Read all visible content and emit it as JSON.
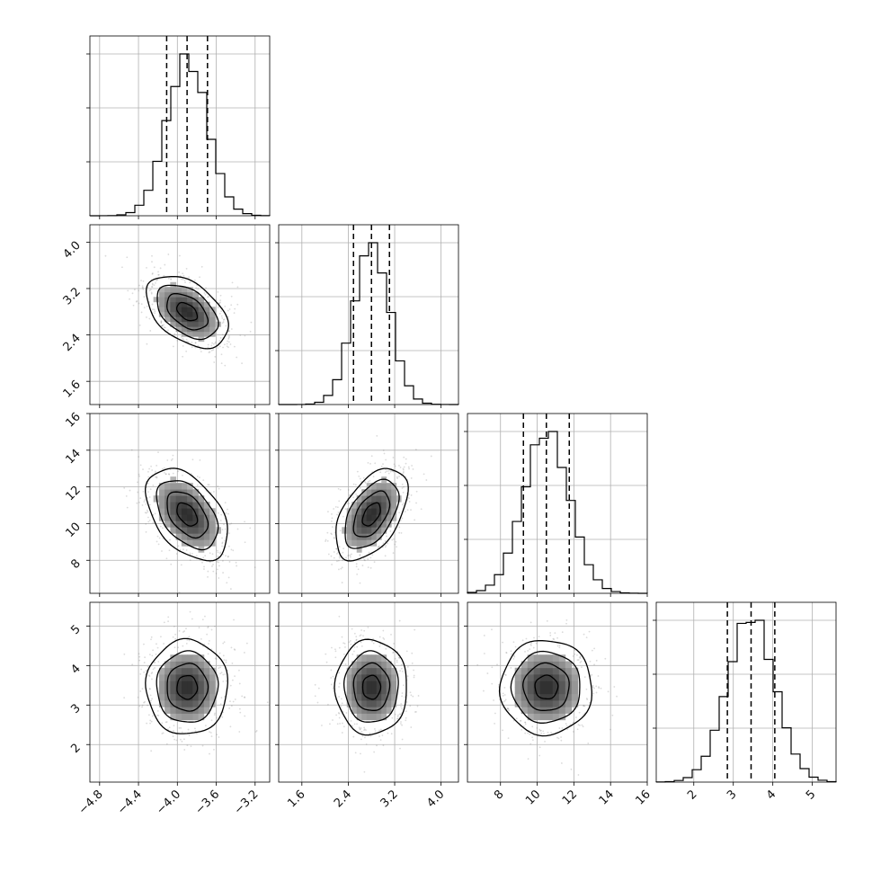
{
  "chart_data": {
    "type": "corner",
    "n_params": 4,
    "grid": true,
    "colors": {
      "line": "#000000",
      "grid": "#b0b0b0",
      "points": "#7f7f7f"
    },
    "parameters": [
      {
        "index": 0,
        "mean": -3.9,
        "sd": 0.21,
        "range": [
          -4.9,
          -3.05
        ],
        "quantiles": [
          -4.11,
          -3.9,
          -3.69
        ],
        "ticks": [
          -4.8,
          -4.4,
          -4.0,
          -3.6,
          -3.2
        ],
        "tick_labels": [
          "−4.8",
          "−4.4",
          "−4.0",
          "−3.6",
          "−3.2"
        ]
      },
      {
        "index": 1,
        "mean": 2.8,
        "sd": 0.31,
        "range": [
          1.2,
          4.3
        ],
        "quantiles": [
          2.49,
          2.8,
          3.11
        ],
        "ticks": [
          1.6,
          2.4,
          3.2,
          4.0
        ],
        "tick_labels": [
          "1.6",
          "2.4",
          "3.2",
          "4.0"
        ]
      },
      {
        "index": 2,
        "mean": 10.5,
        "sd": 1.25,
        "range": [
          6.2,
          16.0
        ],
        "quantiles": [
          9.25,
          10.5,
          11.75
        ],
        "ticks": [
          8,
          10,
          12,
          14,
          16
        ],
        "tick_labels": [
          "8",
          "10",
          "12",
          "14",
          "16"
        ]
      },
      {
        "index": 3,
        "mean": 3.45,
        "sd": 0.6,
        "range": [
          1.05,
          5.6
        ],
        "quantiles": [
          2.85,
          3.45,
          4.05
        ],
        "ticks": [
          2,
          3,
          4,
          5
        ],
        "tick_labels": [
          "2",
          "3",
          "4",
          "5"
        ]
      }
    ],
    "correlations": [
      {
        "pair": [
          0,
          1
        ],
        "rho": -0.45
      },
      {
        "pair": [
          0,
          2
        ],
        "rho": -0.45
      },
      {
        "pair": [
          1,
          2
        ],
        "rho": 0.5
      },
      {
        "pair": [
          0,
          3
        ],
        "rho": 0.0
      },
      {
        "pair": [
          1,
          3
        ],
        "rho": 0.0
      },
      {
        "pair": [
          2,
          3
        ],
        "rho": 0.0
      }
    ],
    "contour_levels_sigma": [
      0.5,
      1.0,
      1.5,
      2.0
    ]
  }
}
